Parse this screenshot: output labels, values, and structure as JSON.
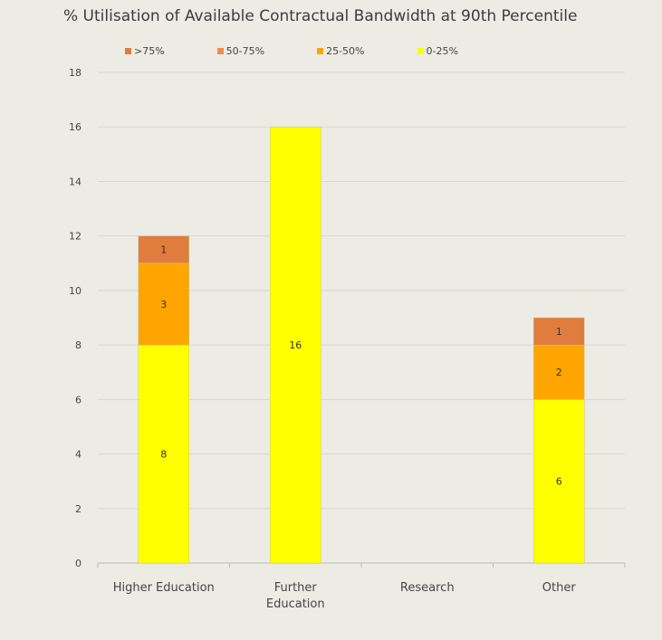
{
  "chart_data": {
    "type": "bar",
    "stacked": true,
    "title": "% Utilisation of Available Contractual Bandwidth at 90th Percentile",
    "categories": [
      "Higher Education",
      "Further Education",
      "Research",
      "Other"
    ],
    "series": [
      {
        "name": "0-25%",
        "color": "#ffff00",
        "values": [
          8,
          16,
          0,
          6
        ]
      },
      {
        "name": "25-50%",
        "color": "#ffa500",
        "values": [
          3,
          0,
          0,
          2
        ]
      },
      {
        "name": "50-75%",
        "color": "#ef8c4a",
        "values": [
          0,
          0,
          0,
          0
        ]
      },
      {
        "name": ">75%",
        "color": "#e07c3e",
        "values": [
          1,
          0,
          0,
          1
        ]
      }
    ],
    "legend_order": [
      ">75%",
      "50-75%",
      "25-50%",
      "0-25%"
    ],
    "legend_position": "top",
    "ylim": [
      0,
      18
    ],
    "y_ticks": [
      0,
      2,
      4,
      6,
      8,
      10,
      12,
      14,
      16,
      18
    ],
    "grid": true,
    "xlabel": "",
    "ylabel": ""
  }
}
